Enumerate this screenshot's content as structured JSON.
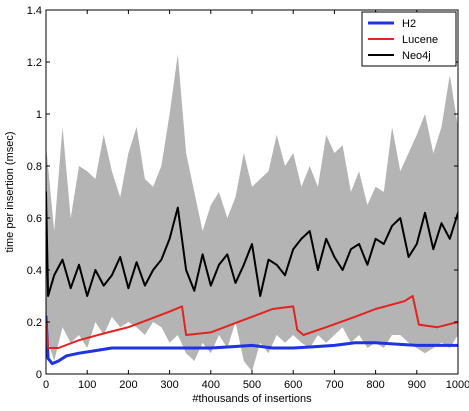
{
  "chart_data": {
    "type": "line",
    "title": "",
    "xlabel": "#thousands of insertions",
    "ylabel": "time per insertion (msec)",
    "xlim": [
      0,
      1000
    ],
    "ylim": [
      0,
      1.4
    ],
    "xticks": [
      0,
      100,
      200,
      300,
      400,
      500,
      600,
      700,
      800,
      900,
      1000
    ],
    "yticks": [
      0,
      0.2,
      0.4,
      0.6,
      0.8,
      1,
      1.2,
      1.4
    ],
    "xtick_labels": [
      "0",
      "100",
      "200",
      "300",
      "400",
      "500",
      "600",
      "700",
      "800",
      "900",
      "1000"
    ],
    "ytick_labels": [
      "0",
      "0.2",
      "0.4",
      "0.6",
      "0.8",
      "1",
      "1.2",
      "1.4"
    ],
    "grid": false,
    "legend_position": "top-right",
    "band": {
      "color": "#b4b4b4",
      "x": [
        0,
        20,
        40,
        60,
        80,
        100,
        120,
        140,
        160,
        180,
        200,
        220,
        240,
        260,
        280,
        300,
        320,
        340,
        360,
        380,
        400,
        420,
        440,
        460,
        480,
        500,
        520,
        540,
        560,
        580,
        600,
        620,
        640,
        660,
        680,
        700,
        720,
        740,
        760,
        780,
        800,
        820,
        840,
        860,
        880,
        900,
        920,
        940,
        960,
        980,
        1000
      ],
      "upper": [
        0.88,
        0.55,
        0.95,
        0.6,
        0.8,
        0.78,
        0.75,
        0.92,
        0.78,
        0.68,
        0.85,
        0.95,
        0.75,
        0.72,
        0.8,
        1.0,
        1.23,
        0.85,
        0.7,
        0.55,
        0.65,
        0.7,
        0.6,
        0.68,
        0.85,
        0.72,
        0.75,
        0.78,
        0.92,
        0.8,
        0.85,
        0.72,
        0.8,
        0.72,
        0.92,
        0.85,
        0.88,
        0.7,
        0.78,
        0.65,
        0.72,
        0.7,
        0.95,
        0.78,
        0.85,
        0.92,
        1.0,
        0.85,
        0.95,
        1.15,
        0.95
      ],
      "lower": [
        0.15,
        0.05,
        0.18,
        0.12,
        0.15,
        0.1,
        0.2,
        0.15,
        0.22,
        0.18,
        0.2,
        0.18,
        0.15,
        0.2,
        0.18,
        0.12,
        0.15,
        0.08,
        0.05,
        0.12,
        0.08,
        0.15,
        0.1,
        0.2,
        0.05,
        0.01,
        0.12,
        0.08,
        0.15,
        0.12,
        0.15,
        0.12,
        0.1,
        0.15,
        0.12,
        0.15,
        0.18,
        0.12,
        0.15,
        0.1,
        0.12,
        0.1,
        0.15,
        0.15,
        0.12,
        0.1,
        0.08,
        0.1,
        0.12,
        0.1,
        0.15
      ]
    },
    "series": [
      {
        "name": "H2",
        "color": "#1f33e0",
        "x": [
          0,
          5,
          15,
          30,
          50,
          80,
          120,
          160,
          200,
          250,
          300,
          350,
          400,
          450,
          500,
          550,
          600,
          650,
          700,
          750,
          800,
          850,
          900,
          950,
          1000
        ],
        "y": [
          0.22,
          0.06,
          0.04,
          0.05,
          0.07,
          0.08,
          0.09,
          0.1,
          0.1,
          0.1,
          0.1,
          0.1,
          0.1,
          0.105,
          0.11,
          0.1,
          0.1,
          0.105,
          0.11,
          0.12,
          0.12,
          0.115,
          0.11,
          0.11,
          0.11
        ]
      },
      {
        "name": "Lucene",
        "color": "#e3231f",
        "x": [
          0,
          5,
          30,
          80,
          150,
          200,
          250,
          300,
          330,
          340,
          400,
          450,
          500,
          550,
          600,
          610,
          625,
          680,
          750,
          800,
          870,
          890,
          905,
          950,
          1000
        ],
        "y": [
          0.2,
          0.1,
          0.1,
          0.13,
          0.16,
          0.18,
          0.21,
          0.24,
          0.26,
          0.15,
          0.16,
          0.19,
          0.22,
          0.25,
          0.26,
          0.17,
          0.15,
          0.18,
          0.22,
          0.25,
          0.28,
          0.3,
          0.19,
          0.18,
          0.2
        ]
      },
      {
        "name": "Neo4j",
        "color": "#000000",
        "x": [
          0,
          5,
          20,
          40,
          60,
          80,
          100,
          120,
          140,
          160,
          180,
          200,
          220,
          240,
          260,
          280,
          300,
          320,
          340,
          360,
          380,
          400,
          420,
          440,
          460,
          480,
          500,
          520,
          540,
          560,
          580,
          600,
          620,
          640,
          660,
          680,
          700,
          720,
          740,
          760,
          780,
          800,
          820,
          840,
          860,
          880,
          900,
          920,
          940,
          960,
          980,
          1000
        ],
        "y": [
          0.7,
          0.3,
          0.38,
          0.44,
          0.33,
          0.42,
          0.3,
          0.4,
          0.34,
          0.38,
          0.45,
          0.33,
          0.43,
          0.34,
          0.4,
          0.44,
          0.52,
          0.64,
          0.4,
          0.32,
          0.46,
          0.34,
          0.42,
          0.46,
          0.35,
          0.42,
          0.5,
          0.3,
          0.44,
          0.42,
          0.38,
          0.48,
          0.52,
          0.55,
          0.4,
          0.52,
          0.45,
          0.4,
          0.48,
          0.5,
          0.42,
          0.52,
          0.5,
          0.57,
          0.6,
          0.45,
          0.5,
          0.62,
          0.48,
          0.58,
          0.52,
          0.62
        ]
      }
    ]
  }
}
